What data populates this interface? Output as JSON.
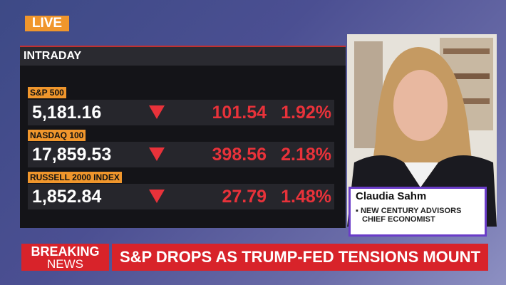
{
  "live": "LIVE",
  "panel": {
    "title": "INTRADAY",
    "rows": [
      {
        "name": "S&P 500",
        "value": "5,181.16",
        "change": "101.54",
        "percent": "1.92%"
      },
      {
        "name": "NASDAQ 100",
        "value": "17,859.53",
        "change": "398.56",
        "percent": "2.18%"
      },
      {
        "name": "RUSSELL 2000 INDEX",
        "value": "1,852.84",
        "change": "27.79",
        "percent": "1.48%"
      }
    ]
  },
  "guest": {
    "name": "Claudia Sahm",
    "line1": "NEW CENTURY ADVISORS",
    "line2": "CHIEF ECONOMIST"
  },
  "breaking": {
    "line1": "BREAKING",
    "line2": "NEWS",
    "headline": "S&P DROPS AS TRUMP-FED TENSIONS MOUNT"
  }
}
